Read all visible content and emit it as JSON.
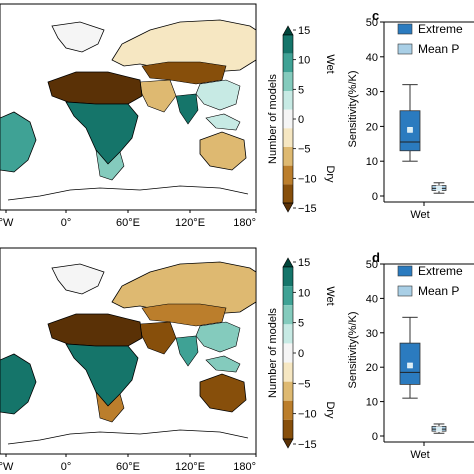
{
  "colorbar": {
    "label": "Number of models",
    "wet_label": "Wet",
    "dry_label": "Dry",
    "ticks": [
      "15",
      "10",
      "5",
      "0",
      "−5",
      "−10",
      "−15"
    ],
    "colors": [
      "#01453b",
      "#15756a",
      "#3fa295",
      "#84cbbd",
      "#c7eae4",
      "#f5f5f5",
      "#f6e7c2",
      "#deb971",
      "#bb7e2c",
      "#874f0b",
      "#5a3106"
    ]
  },
  "map": {
    "lon_ticks": [
      "°W",
      "0°",
      "60°E",
      "120°E",
      "180°"
    ],
    "land_color": "#ffffff",
    "ocean_color": "#ffffff"
  },
  "chart_data": [
    {
      "panel": "c",
      "type": "box",
      "ylabel": "Sensitivity(%/K)",
      "ylim": [
        0,
        50
      ],
      "yticks": [
        0,
        10,
        20,
        30,
        40,
        50
      ],
      "categories": [
        "Wet"
      ],
      "legend": [
        "Extreme",
        "Mean P"
      ],
      "series": [
        {
          "name": "Extreme",
          "color": "#2b7bbf",
          "whisker_low": 10,
          "q1": 13,
          "median": 15.5,
          "q3": 24.5,
          "whisker_high": 32,
          "mean": 19
        },
        {
          "name": "Mean P",
          "color": "#a9cfe6",
          "whisker_low": 0.8,
          "q1": 1.6,
          "median": 2.2,
          "q3": 3.0,
          "whisker_high": 3.8,
          "mean": 2.2
        }
      ]
    },
    {
      "panel": "d",
      "type": "box",
      "ylabel": "Sensitivity(%/K)",
      "ylim": [
        0,
        50
      ],
      "yticks": [
        0,
        10,
        20,
        30,
        40,
        50
      ],
      "categories": [
        "Wet"
      ],
      "legend": [
        "Extreme",
        "Mean P"
      ],
      "series": [
        {
          "name": "Extreme",
          "color": "#2b7bbf",
          "whisker_low": 11,
          "q1": 15,
          "median": 18.5,
          "q3": 27,
          "whisker_high": 34.5,
          "mean": 20.5
        },
        {
          "name": "Mean P",
          "color": "#a9cfe6",
          "whisker_low": 0.8,
          "q1": 1.4,
          "median": 2.0,
          "q3": 2.8,
          "whisker_high": 3.5,
          "mean": 2.0
        }
      ]
    }
  ]
}
